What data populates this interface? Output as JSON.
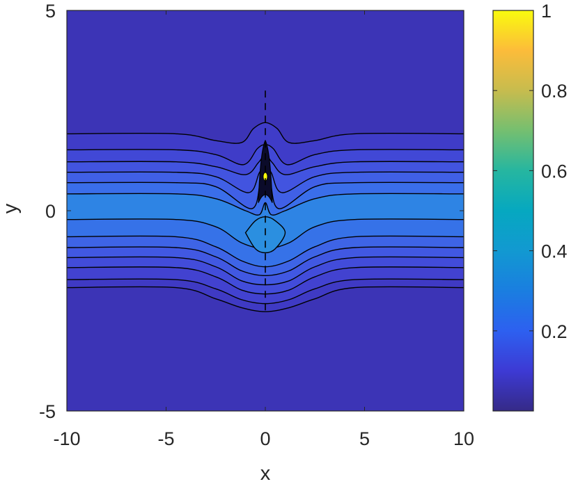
{
  "chart_data": {
    "type": "contour",
    "title": "",
    "xlabel": "x",
    "ylabel": "y",
    "xlim": [
      -10,
      10
    ],
    "ylim": [
      -5,
      5
    ],
    "xticks": [
      "-10",
      "-5",
      "0",
      "5",
      "10"
    ],
    "yticks": [
      "-5",
      "0",
      "5"
    ],
    "colorbar": {
      "ticks": [
        "0.2",
        "0.4",
        "0.6",
        "0.8",
        "1"
      ],
      "tick_values": [
        0.2,
        0.4,
        0.6,
        0.8,
        1
      ],
      "range": [
        0,
        1
      ],
      "colormap": "parula"
    },
    "contour_fill_color": "#3c34b6",
    "contour_line_color": "#000000",
    "contour_lines": [
      {
        "level": 0.04,
        "points": [
          [
            -10,
            1.92
          ],
          [
            -4.5,
            1.92
          ],
          [
            -2.5,
            1.75
          ],
          [
            -1.2,
            1.7
          ],
          [
            -0.6,
            2.05
          ],
          [
            0,
            2.2
          ],
          [
            0.6,
            2.05
          ],
          [
            1.2,
            1.7
          ],
          [
            2.5,
            1.75
          ],
          [
            4.5,
            1.92
          ],
          [
            10,
            1.92
          ]
        ]
      },
      {
        "level": 0.07,
        "points": [
          [
            -10,
            1.52
          ],
          [
            -4.5,
            1.52
          ],
          [
            -2.5,
            1.4
          ],
          [
            -1.1,
            1.15
          ],
          [
            -0.4,
            1.55
          ],
          [
            0,
            1.65
          ],
          [
            0.4,
            1.55
          ],
          [
            1.1,
            1.15
          ],
          [
            2.5,
            1.4
          ],
          [
            4.5,
            1.52
          ],
          [
            10,
            1.52
          ]
        ]
      },
      {
        "level": 0.1,
        "points": [
          [
            -10,
            1.22
          ],
          [
            -4.5,
            1.22
          ],
          [
            -2.5,
            1.1
          ],
          [
            -1.0,
            0.9
          ],
          [
            -0.35,
            1.2
          ],
          [
            0,
            1.4
          ],
          [
            0.35,
            1.2
          ],
          [
            1.0,
            0.9
          ],
          [
            2.5,
            1.1
          ],
          [
            4.5,
            1.22
          ],
          [
            10,
            1.22
          ]
        ]
      },
      {
        "level": 0.13,
        "points": [
          [
            -10,
            0.96
          ],
          [
            -4.5,
            0.96
          ],
          [
            -2.5,
            0.85
          ],
          [
            -0.85,
            0.45
          ],
          [
            -0.3,
            0.95
          ],
          [
            0,
            1.15
          ],
          [
            0.3,
            0.95
          ],
          [
            0.85,
            0.45
          ],
          [
            2.5,
            0.85
          ],
          [
            4.5,
            0.96
          ],
          [
            10,
            0.96
          ]
        ]
      },
      {
        "level": 0.16,
        "points": [
          [
            -10,
            0.7
          ],
          [
            -4.5,
            0.7
          ],
          [
            -2.5,
            0.6
          ],
          [
            -0.7,
            0.05
          ],
          [
            -0.25,
            0.7
          ],
          [
            0,
            0.85
          ],
          [
            0.25,
            0.7
          ],
          [
            0.7,
            0.05
          ],
          [
            2.5,
            0.6
          ],
          [
            4.5,
            0.7
          ],
          [
            10,
            0.7
          ]
        ]
      },
      {
        "level": 0.2,
        "points": [
          [
            -10,
            0.42
          ],
          [
            -4.5,
            0.42
          ],
          [
            -2.5,
            0.3
          ],
          [
            -1.0,
            0.0
          ],
          [
            -0.3,
            -0.1
          ],
          [
            0,
            0.2
          ],
          [
            0.3,
            -0.1
          ],
          [
            1.0,
            0.0
          ],
          [
            2.5,
            0.3
          ],
          [
            4.5,
            0.42
          ],
          [
            10,
            0.42
          ]
        ]
      },
      {
        "level": 0.24,
        "points": [
          [
            -10,
            -0.22
          ],
          [
            -4.5,
            -0.22
          ],
          [
            -2.5,
            -0.4
          ],
          [
            -1.2,
            -0.8
          ],
          [
            0,
            -0.95
          ],
          [
            1.2,
            -0.8
          ],
          [
            2.5,
            -0.4
          ],
          [
            4.5,
            -0.22
          ],
          [
            10,
            -0.22
          ]
        ]
      },
      {
        "level": 0.2,
        "points": [
          [
            -10,
            -0.65
          ],
          [
            -4.5,
            -0.65
          ],
          [
            -2.5,
            -0.9
          ],
          [
            -1.2,
            -1.25
          ],
          [
            0,
            -1.4
          ],
          [
            1.2,
            -1.25
          ],
          [
            2.5,
            -0.9
          ],
          [
            4.5,
            -0.65
          ],
          [
            10,
            -0.65
          ]
        ]
      },
      {
        "level": 0.16,
        "points": [
          [
            -10,
            -0.92
          ],
          [
            -4.5,
            -0.92
          ],
          [
            -2.5,
            -1.15
          ],
          [
            -1.2,
            -1.5
          ],
          [
            0,
            -1.62
          ],
          [
            1.2,
            -1.5
          ],
          [
            2.5,
            -1.15
          ],
          [
            4.5,
            -0.92
          ],
          [
            10,
            -0.92
          ]
        ]
      },
      {
        "level": 0.13,
        "points": [
          [
            -10,
            -1.17
          ],
          [
            -4.5,
            -1.17
          ],
          [
            -2.5,
            -1.4
          ],
          [
            -1.2,
            -1.75
          ],
          [
            0,
            -1.85
          ],
          [
            1.2,
            -1.75
          ],
          [
            2.5,
            -1.4
          ],
          [
            4.5,
            -1.17
          ],
          [
            10,
            -1.17
          ]
        ]
      },
      {
        "level": 0.1,
        "points": [
          [
            -10,
            -1.42
          ],
          [
            -4.5,
            -1.42
          ],
          [
            -2.5,
            -1.65
          ],
          [
            -1.2,
            -1.98
          ],
          [
            0,
            -2.08
          ],
          [
            1.2,
            -1.98
          ],
          [
            2.5,
            -1.65
          ],
          [
            4.5,
            -1.42
          ],
          [
            10,
            -1.42
          ]
        ]
      },
      {
        "level": 0.07,
        "points": [
          [
            -10,
            -1.72
          ],
          [
            -4.5,
            -1.72
          ],
          [
            -2.5,
            -1.95
          ],
          [
            -1.2,
            -2.22
          ],
          [
            0,
            -2.32
          ],
          [
            1.2,
            -2.22
          ],
          [
            2.5,
            -1.95
          ],
          [
            4.5,
            -1.72
          ],
          [
            10,
            -1.72
          ]
        ]
      },
      {
        "level": 0.04,
        "points": [
          [
            -10,
            -1.92
          ],
          [
            -4.5,
            -1.92
          ],
          [
            -2.5,
            -2.2
          ],
          [
            -1.2,
            -2.42
          ],
          [
            0,
            -2.52
          ],
          [
            1.2,
            -2.42
          ],
          [
            2.5,
            -2.2
          ],
          [
            4.5,
            -1.92
          ],
          [
            10,
            -1.92
          ]
        ]
      }
    ],
    "bands": [
      {
        "y_range": [
          1.52,
          1.92
        ],
        "color": "#3f3cc8"
      },
      {
        "y_range": [
          1.22,
          1.52
        ],
        "color": "#4148d6"
      },
      {
        "y_range": [
          0.96,
          1.22
        ],
        "color": "#4254e0"
      },
      {
        "y_range": [
          0.7,
          0.96
        ],
        "color": "#4060e6"
      },
      {
        "y_range": [
          0.42,
          0.7
        ],
        "color": "#3a6eea"
      },
      {
        "y_range": [
          -0.22,
          0.42
        ],
        "color": "#2e84e4"
      },
      {
        "y_range": [
          -0.65,
          -0.22
        ],
        "color": "#3672e8"
      },
      {
        "y_range": [
          -0.92,
          -0.65
        ],
        "color": "#3e64e6"
      },
      {
        "y_range": [
          -1.17,
          -0.92
        ],
        "color": "#4158e2"
      },
      {
        "y_range": [
          -1.42,
          -1.17
        ],
        "color": "#424cda"
      },
      {
        "y_range": [
          -1.72,
          -1.42
        ],
        "color": "#4242d0"
      },
      {
        "y_range": [
          -1.92,
          -1.72
        ],
        "color": "#3f3ac4"
      }
    ],
    "inner_contour": {
      "level": 0.28,
      "points": [
        [
          -1.0,
          -0.55
        ],
        [
          -0.5,
          -0.25
        ],
        [
          0,
          -0.15
        ],
        [
          0.5,
          -0.25
        ],
        [
          1.0,
          -0.55
        ],
        [
          0.5,
          -0.95
        ],
        [
          0,
          -1.05
        ],
        [
          -0.5,
          -0.95
        ]
      ],
      "color": "#2b8fe0"
    },
    "peak": {
      "x": 0,
      "y": 0.85,
      "value": 1,
      "color": "#f9fb0e"
    },
    "dashed_line": {
      "x": 0,
      "y_range": [
        -2.5,
        3.0
      ]
    }
  }
}
